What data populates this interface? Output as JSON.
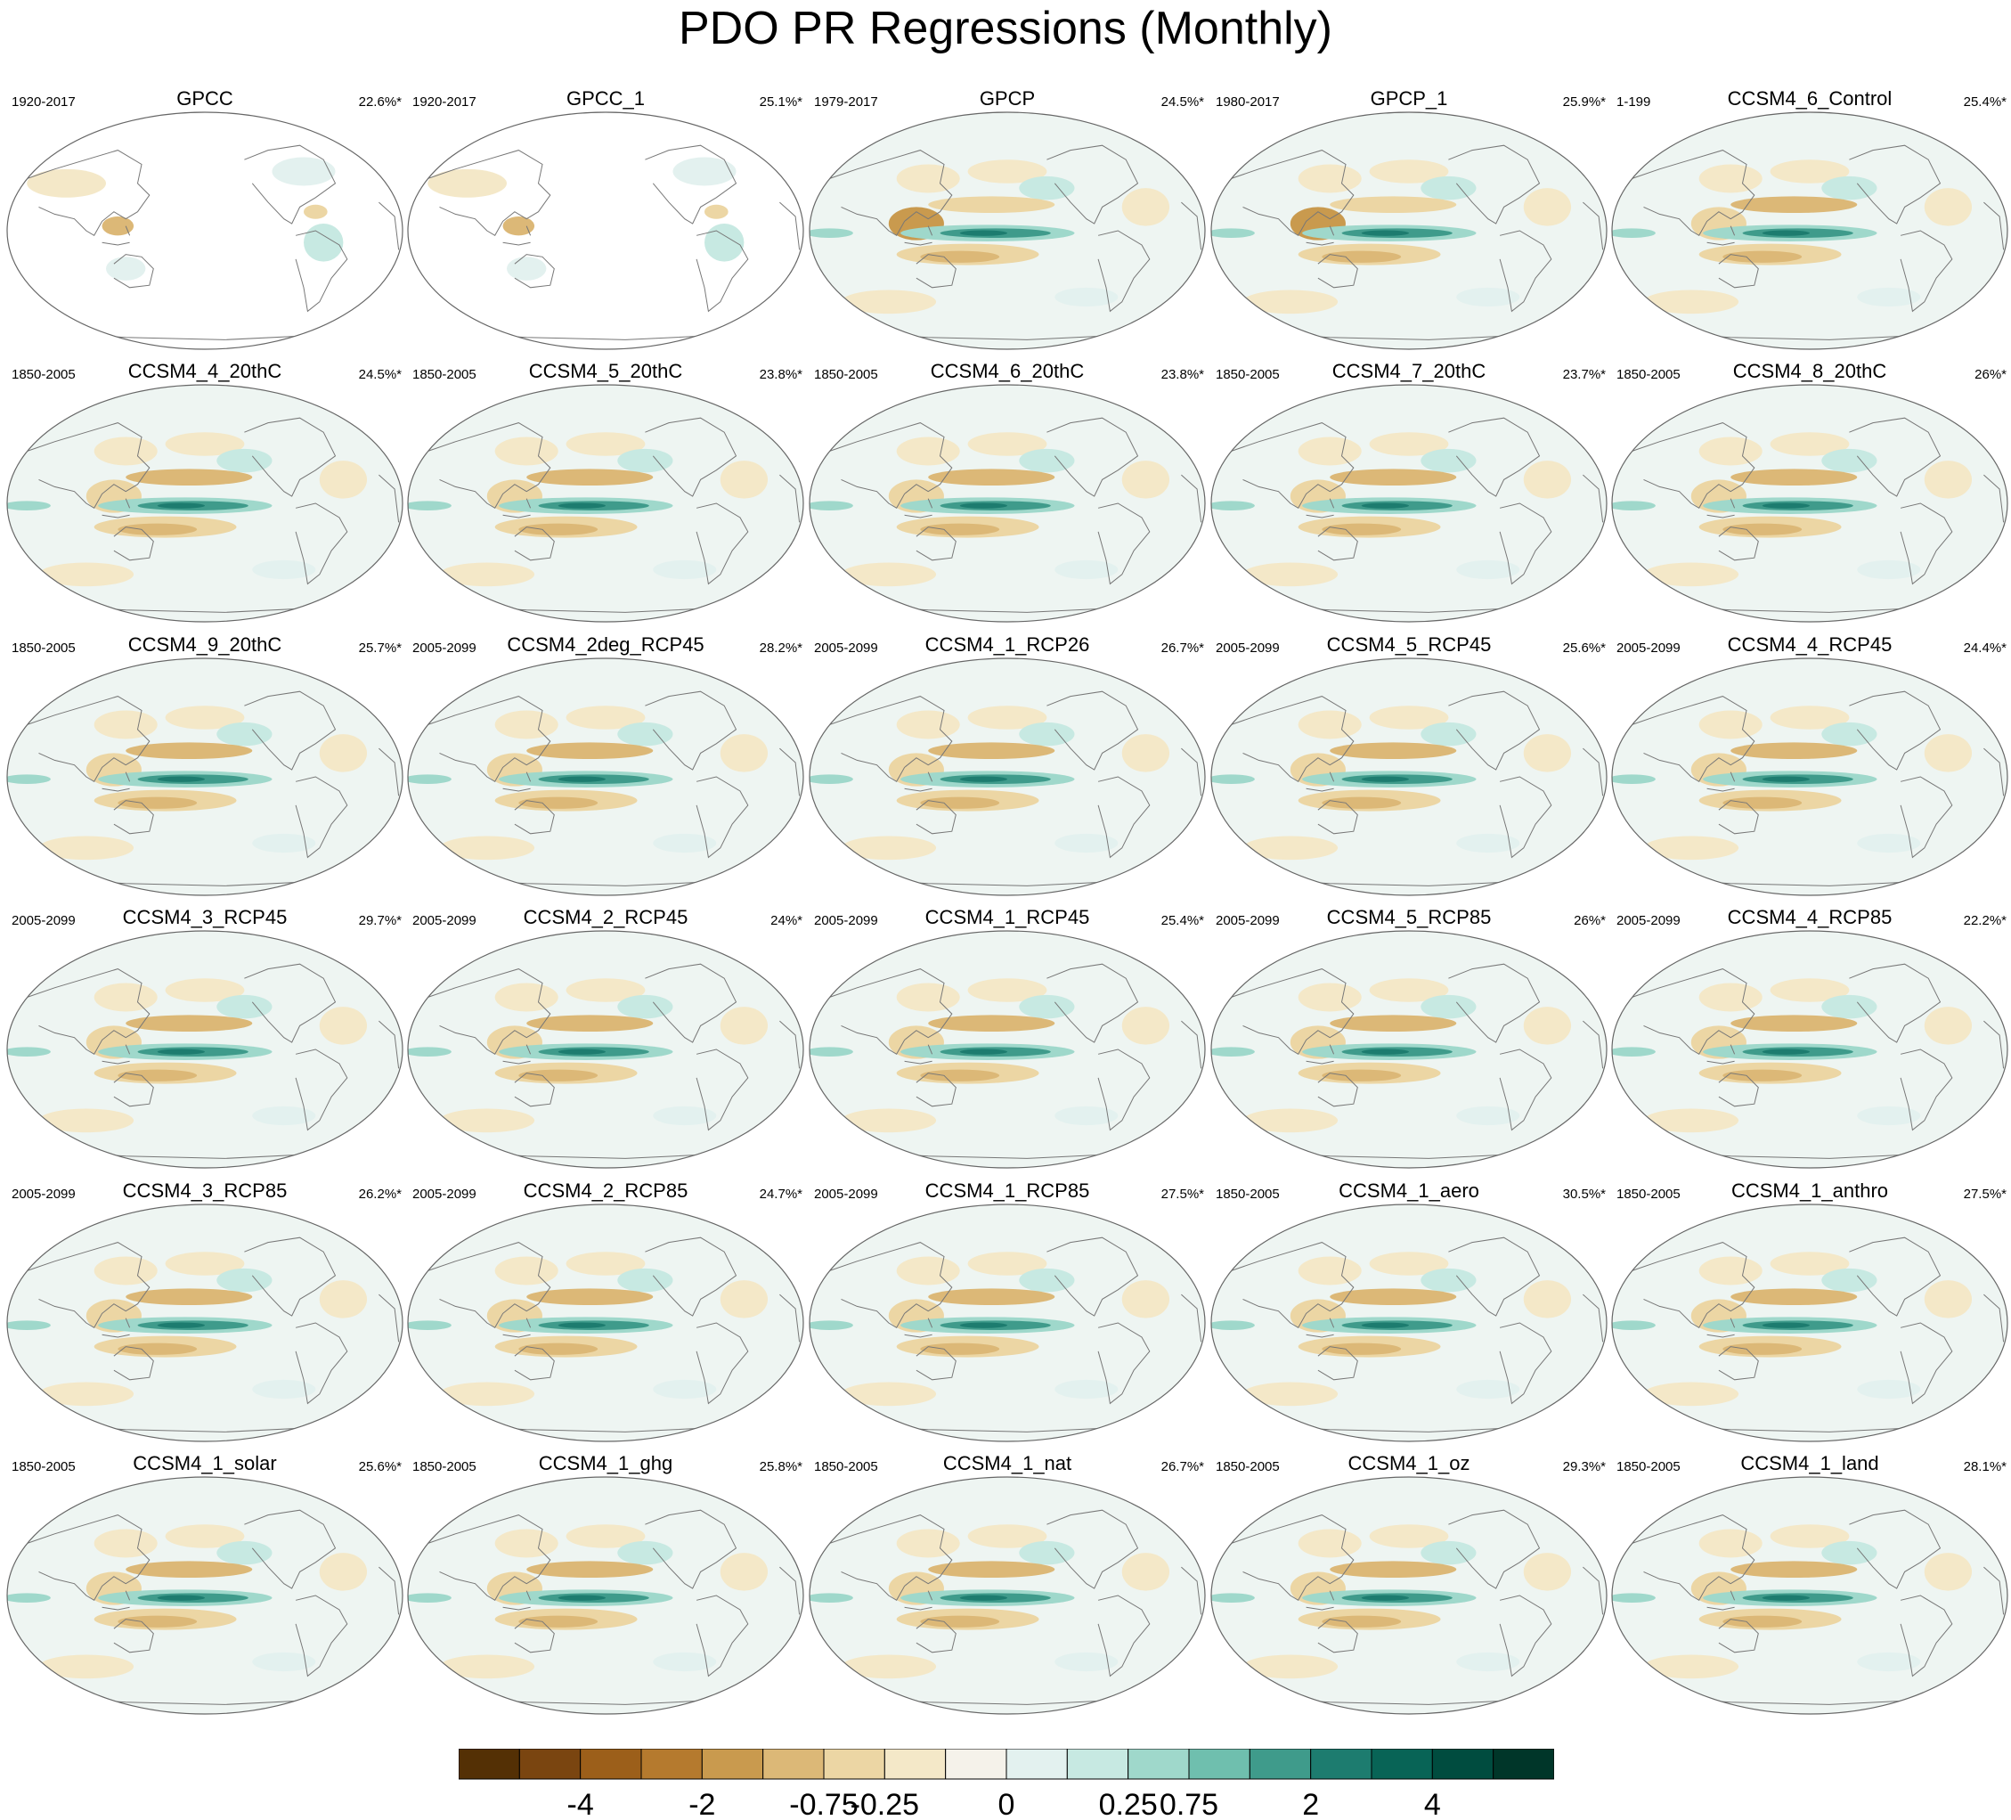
{
  "title": "PDO PR Regressions (Monthly)",
  "panels": [
    {
      "name": "GPCC",
      "years": "1920-2017",
      "pct": "22.6%*",
      "mode": "land"
    },
    {
      "name": "GPCC_1",
      "years": "1920-2017",
      "pct": "25.1%*",
      "mode": "land"
    },
    {
      "name": "GPCP",
      "years": "1979-2017",
      "pct": "24.5%*",
      "mode": "obs"
    },
    {
      "name": "GPCP_1",
      "years": "1980-2017",
      "pct": "25.9%*",
      "mode": "obs"
    },
    {
      "name": "CCSM4_6_Control",
      "years": "1-199",
      "pct": "25.4%*",
      "mode": "model"
    },
    {
      "name": "CCSM4_4_20thC",
      "years": "1850-2005",
      "pct": "24.5%*",
      "mode": "model"
    },
    {
      "name": "CCSM4_5_20thC",
      "years": "1850-2005",
      "pct": "23.8%*",
      "mode": "model"
    },
    {
      "name": "CCSM4_6_20thC",
      "years": "1850-2005",
      "pct": "23.8%*",
      "mode": "model"
    },
    {
      "name": "CCSM4_7_20thC",
      "years": "1850-2005",
      "pct": "23.7%*",
      "mode": "model"
    },
    {
      "name": "CCSM4_8_20thC",
      "years": "1850-2005",
      "pct": "26%*",
      "mode": "model"
    },
    {
      "name": "CCSM4_9_20thC",
      "years": "1850-2005",
      "pct": "25.7%*",
      "mode": "model"
    },
    {
      "name": "CCSM4_2deg_RCP45",
      "years": "2005-2099",
      "pct": "28.2%*",
      "mode": "model"
    },
    {
      "name": "CCSM4_1_RCP26",
      "years": "2005-2099",
      "pct": "26.7%*",
      "mode": "model"
    },
    {
      "name": "CCSM4_5_RCP45",
      "years": "2005-2099",
      "pct": "25.6%*",
      "mode": "model"
    },
    {
      "name": "CCSM4_4_RCP45",
      "years": "2005-2099",
      "pct": "24.4%*",
      "mode": "model"
    },
    {
      "name": "CCSM4_3_RCP45",
      "years": "2005-2099",
      "pct": "29.7%*",
      "mode": "model"
    },
    {
      "name": "CCSM4_2_RCP45",
      "years": "2005-2099",
      "pct": "24%*",
      "mode": "model"
    },
    {
      "name": "CCSM4_1_RCP45",
      "years": "2005-2099",
      "pct": "25.4%*",
      "mode": "model"
    },
    {
      "name": "CCSM4_5_RCP85",
      "years": "2005-2099",
      "pct": "26%*",
      "mode": "model"
    },
    {
      "name": "CCSM4_4_RCP85",
      "years": "2005-2099",
      "pct": "22.2%*",
      "mode": "model"
    },
    {
      "name": "CCSM4_3_RCP85",
      "years": "2005-2099",
      "pct": "26.2%*",
      "mode": "model"
    },
    {
      "name": "CCSM4_2_RCP85",
      "years": "2005-2099",
      "pct": "24.7%*",
      "mode": "model"
    },
    {
      "name": "CCSM4_1_RCP85",
      "years": "2005-2099",
      "pct": "27.5%*",
      "mode": "model"
    },
    {
      "name": "CCSM4_1_aero",
      "years": "1850-2005",
      "pct": "30.5%*",
      "mode": "model"
    },
    {
      "name": "CCSM4_1_anthro",
      "years": "1850-2005",
      "pct": "27.5%*",
      "mode": "model"
    },
    {
      "name": "CCSM4_1_solar",
      "years": "1850-2005",
      "pct": "25.6%*",
      "mode": "model"
    },
    {
      "name": "CCSM4_1_ghg",
      "years": "1850-2005",
      "pct": "25.8%*",
      "mode": "model"
    },
    {
      "name": "CCSM4_1_nat",
      "years": "1850-2005",
      "pct": "26.7%*",
      "mode": "model"
    },
    {
      "name": "CCSM4_1_oz",
      "years": "1850-2005",
      "pct": "29.3%*",
      "mode": "model"
    },
    {
      "name": "CCSM4_1_land",
      "years": "1850-2005",
      "pct": "28.1%*",
      "mode": "model"
    }
  ],
  "colorbar": {
    "colors": [
      "#543005",
      "#7a4510",
      "#9c5f1a",
      "#b57a2e",
      "#c99a4e",
      "#dcb877",
      "#ecd6a4",
      "#f4e8c8",
      "#f5f2ea",
      "#e3f1ef",
      "#c7e9e2",
      "#9fd8cb",
      "#6fbfae",
      "#3f9b8b",
      "#1d7c6f",
      "#086456",
      "#004c3f",
      "#003629"
    ],
    "tick_labels": [
      "-4",
      "-2",
      "-0.75",
      "-0.25",
      "0",
      "0.25",
      "0.75",
      "2",
      "4"
    ],
    "tick_boundaries": [
      2,
      4,
      6,
      7,
      9,
      11,
      12,
      14,
      16
    ]
  },
  "chart_data": {
    "type": "heatmap",
    "title": "PDO PR Regressions (Monthly)",
    "projection": "Robinson-style global map centred on the Pacific",
    "colorbar_levels": [
      -4,
      -2,
      -0.75,
      -0.25,
      0,
      0.25,
      0.75,
      2,
      4
    ],
    "panel_count": 30,
    "layout": "6 rows x 5 columns"
  }
}
